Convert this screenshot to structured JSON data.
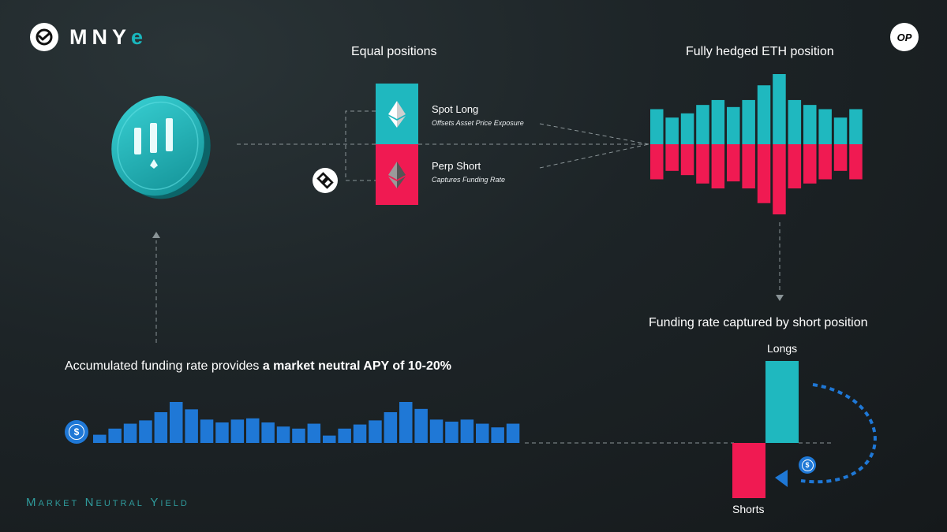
{
  "brand": {
    "name": "MNY",
    "suffix": "e"
  },
  "badges": {
    "op": "OP",
    "usd_symbol": "$"
  },
  "equal_positions": {
    "title": "Equal positions",
    "spot": {
      "label": "Spot Long",
      "sub": "Offsets Asset Price Exposure"
    },
    "perp": {
      "label": "Perp Short",
      "sub": "Captures Funding Rate"
    }
  },
  "hedged": {
    "title": "Fully hedged ETH position",
    "longs": [
      0.5,
      0.38,
      0.44,
      0.56,
      0.63,
      0.53,
      0.63,
      0.84,
      1.0,
      0.63,
      0.56,
      0.5,
      0.38,
      0.5
    ],
    "shorts": [
      0.5,
      0.38,
      0.44,
      0.56,
      0.63,
      0.53,
      0.63,
      0.84,
      1.0,
      0.63,
      0.56,
      0.5,
      0.38,
      0.5
    ]
  },
  "funding": {
    "title": "Funding rate captured by short position",
    "longs_label": "Longs",
    "shorts_label": "Shorts"
  },
  "apy": {
    "text": "Accumulated funding rate provides ",
    "bold": "a market neutral APY of 10-20%"
  },
  "accumulated": {
    "values": [
      0.2,
      0.35,
      0.47,
      0.55,
      0.75,
      1.0,
      0.82,
      0.57,
      0.5,
      0.57,
      0.6,
      0.5,
      0.4,
      0.35,
      0.47,
      0.18,
      0.35,
      0.45,
      0.55,
      0.75,
      1.0,
      0.83,
      0.57,
      0.52,
      0.57,
      0.47,
      0.38,
      0.47
    ]
  },
  "footer": {
    "words": [
      {
        "cap": "M",
        "rest": "ARKET"
      },
      {
        "cap": "N",
        "rest": "EUTRAL"
      },
      {
        "cap": "Y",
        "rest": "IELD"
      }
    ]
  },
  "colors": {
    "teal": "#1fb8bf",
    "pink": "#f01a52",
    "blue": "#1f78d6",
    "footer": "#2f9a9b",
    "dash": "#8a9497"
  },
  "icons": [
    "mnye-logo-icon",
    "op-badge-icon",
    "mnye-coin-icon",
    "bybit-icon",
    "ethereum-icon",
    "usdc-icon"
  ]
}
